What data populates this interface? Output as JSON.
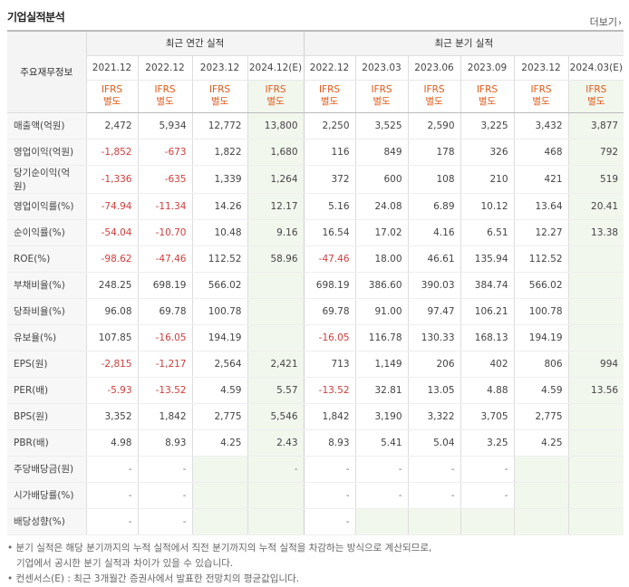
{
  "header": {
    "title": "기업실적분석",
    "more_label": "더보기"
  },
  "table": {
    "row_header_label": "주요재무정보",
    "annual_group": "최근 연간 실적",
    "quarter_group": "최근 분기 실적",
    "periods": [
      "2021.12",
      "2022.12",
      "2023.12",
      "2024.12(E)",
      "2022.12",
      "2023.03",
      "2023.06",
      "2023.09",
      "2023.12",
      "2024.03(E)"
    ],
    "ifrs_label": "IFRS",
    "basis_label": "별도",
    "rows": [
      {
        "label": "매출액(억원)",
        "values": [
          "2,472",
          "5,934",
          "12,772",
          "13,800",
          "2,250",
          "3,525",
          "2,590",
          "3,225",
          "3,432",
          "3,877"
        ]
      },
      {
        "label": "영업이익(억원)",
        "values": [
          "-1,852",
          "-673",
          "1,822",
          "1,680",
          "116",
          "849",
          "178",
          "326",
          "468",
          "792"
        ]
      },
      {
        "label": "당기순이익(억원)",
        "values": [
          "-1,336",
          "-635",
          "1,339",
          "1,264",
          "372",
          "600",
          "108",
          "210",
          "421",
          "519"
        ]
      },
      {
        "label": "영업이익률(%)",
        "values": [
          "-74.94",
          "-11.34",
          "14.26",
          "12.17",
          "5.16",
          "24.08",
          "6.89",
          "10.12",
          "13.64",
          "20.41"
        ]
      },
      {
        "label": "순이익률(%)",
        "values": [
          "-54.04",
          "-10.70",
          "10.48",
          "9.16",
          "16.54",
          "17.02",
          "4.16",
          "6.51",
          "12.27",
          "13.38"
        ]
      },
      {
        "label": "ROE(%)",
        "values": [
          "-98.62",
          "-47.46",
          "112.52",
          "58.96",
          "-47.46",
          "18.00",
          "46.61",
          "135.94",
          "112.52",
          ""
        ]
      },
      {
        "label": "부채비율(%)",
        "values": [
          "248.25",
          "698.19",
          "566.02",
          "",
          "698.19",
          "386.60",
          "390.03",
          "384.74",
          "566.02",
          ""
        ]
      },
      {
        "label": "당좌비율(%)",
        "values": [
          "96.08",
          "69.78",
          "100.78",
          "",
          "69.78",
          "91.00",
          "97.47",
          "106.21",
          "100.78",
          ""
        ]
      },
      {
        "label": "유보율(%)",
        "values": [
          "107.85",
          "-16.05",
          "194.19",
          "",
          "-16.05",
          "116.78",
          "130.33",
          "168.13",
          "194.19",
          ""
        ]
      },
      {
        "label": "EPS(원)",
        "values": [
          "-2,815",
          "-1,217",
          "2,564",
          "2,421",
          "713",
          "1,149",
          "206",
          "402",
          "806",
          "994"
        ]
      },
      {
        "label": "PER(배)",
        "values": [
          "-5.93",
          "-13.52",
          "4.59",
          "5.57",
          "-13.52",
          "32.81",
          "13.05",
          "4.88",
          "4.59",
          "13.56"
        ]
      },
      {
        "label": "BPS(원)",
        "values": [
          "3,352",
          "1,842",
          "2,775",
          "5,546",
          "1,842",
          "3,190",
          "3,322",
          "3,705",
          "2,775",
          ""
        ]
      },
      {
        "label": "PBR(배)",
        "values": [
          "4.98",
          "8.93",
          "4.25",
          "2.43",
          "8.93",
          "5.41",
          "5.04",
          "3.25",
          "4.25",
          ""
        ]
      },
      {
        "label": "주당배당금(원)",
        "values": [
          "-",
          "-",
          "",
          "-",
          "-",
          "-",
          "-",
          "-",
          "",
          ""
        ]
      },
      {
        "label": "시가배당률(%)",
        "values": [
          "-",
          "-",
          "",
          "",
          "-",
          "-",
          "-",
          "-",
          "",
          ""
        ]
      },
      {
        "label": "배당성향(%)",
        "values": [
          "-",
          "-",
          "",
          "",
          "-",
          "",
          "",
          "",
          "",
          ""
        ]
      }
    ]
  },
  "footer": {
    "line1": "분기 실적은 해당 분기까지의 누적 실적에서 직전 분기까지의 누적 실적을 차감하는 방식으로 계산되므로,",
    "line2": "기업에서 공시한 분기 실적과 차이가 있을 수 있습니다.",
    "line3": "컨센서스(E) : 최근 3개월간 증권사에서 발표한 전망치의 평균값입니다."
  },
  "colors": {
    "negative": "#d23c3c",
    "ifrs": "#e05a1a",
    "estimate_bg": "#f2f7ee"
  }
}
